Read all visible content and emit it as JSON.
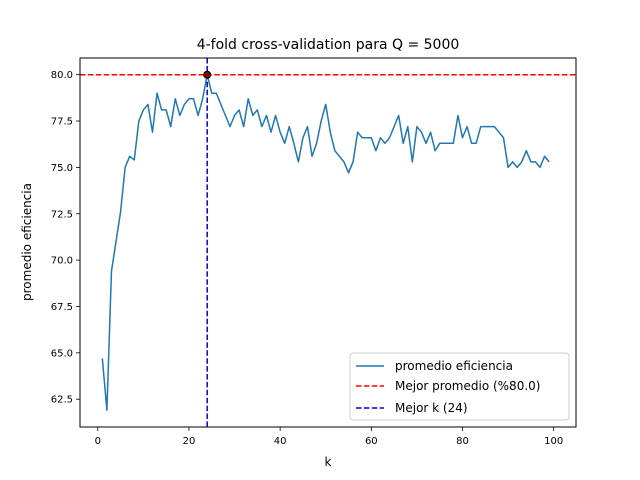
{
  "chart_data": {
    "type": "line",
    "title": "4-fold cross-validation para Q = 5000",
    "xlabel": "k",
    "ylabel": "promedio eficiencia",
    "xlim": [
      -3.9,
      104.9
    ],
    "ylim": [
      61.0,
      80.9
    ],
    "xticks": [
      0,
      20,
      40,
      60,
      80,
      100
    ],
    "xtick_labels": [
      "0",
      "20",
      "40",
      "60",
      "80",
      "100"
    ],
    "yticks": [
      62.5,
      65.0,
      67.5,
      70.0,
      72.5,
      75.0,
      77.5,
      80.0
    ],
    "ytick_labels": [
      "62.5",
      "65.0",
      "67.5",
      "70.0",
      "72.5",
      "75.0",
      "77.5",
      "80.0"
    ],
    "grid": false,
    "legend_position": "lower-right",
    "series": [
      {
        "name": "promedio eficiencia",
        "color": "#1f77b4",
        "x": [
          1,
          2,
          3,
          4,
          5,
          6,
          7,
          8,
          9,
          10,
          11,
          12,
          13,
          14,
          15,
          16,
          17,
          18,
          19,
          20,
          21,
          22,
          23,
          24,
          25,
          26,
          27,
          28,
          29,
          30,
          31,
          32,
          33,
          34,
          35,
          36,
          37,
          38,
          39,
          40,
          41,
          42,
          43,
          44,
          45,
          46,
          47,
          48,
          49,
          50,
          51,
          52,
          53,
          54,
          55,
          56,
          57,
          58,
          59,
          60,
          61,
          62,
          63,
          64,
          65,
          66,
          67,
          68,
          69,
          70,
          71,
          72,
          73,
          74,
          75,
          76,
          77,
          78,
          79,
          80,
          81,
          82,
          83,
          84,
          85,
          86,
          87,
          88,
          89,
          90,
          91,
          92,
          93,
          94,
          95,
          96,
          97,
          98,
          99
        ],
        "values": [
          64.7,
          61.9,
          69.4,
          71.0,
          72.6,
          75.0,
          75.6,
          75.4,
          77.5,
          78.1,
          78.4,
          76.9,
          79.0,
          78.1,
          78.1,
          77.2,
          78.7,
          77.8,
          78.4,
          78.7,
          78.7,
          77.8,
          78.7,
          80.0,
          79.0,
          79.0,
          78.4,
          77.8,
          77.2,
          77.8,
          78.1,
          77.2,
          78.7,
          77.8,
          78.1,
          77.2,
          77.8,
          76.9,
          77.8,
          76.9,
          76.3,
          77.2,
          76.3,
          75.3,
          76.6,
          77.2,
          75.6,
          76.3,
          77.5,
          78.4,
          76.9,
          75.9,
          75.6,
          75.3,
          74.7,
          75.3,
          76.9,
          76.6,
          76.6,
          76.6,
          75.9,
          76.6,
          76.3,
          76.6,
          77.2,
          77.8,
          76.3,
          77.2,
          75.3,
          77.2,
          76.9,
          76.3,
          76.9,
          75.9,
          76.3,
          76.3,
          76.3,
          76.3,
          77.8,
          76.6,
          77.2,
          76.3,
          76.3,
          77.2,
          77.2,
          77.2,
          77.2,
          76.9,
          76.6,
          75.0,
          75.3,
          75.0,
          75.3,
          75.9,
          75.3,
          75.3,
          75.0,
          75.6,
          75.3
        ]
      }
    ],
    "reference_lines": [
      {
        "orientation": "horizontal",
        "value": 80.0,
        "color": "#ff0000",
        "style": "dashed",
        "label": "Mejor promedio (%80.0)"
      },
      {
        "orientation": "vertical",
        "value": 24,
        "color": "#0000cc",
        "style": "dashed",
        "label": "Mejor k (24)"
      }
    ],
    "highlight_point": {
      "x": 24,
      "y": 80.0,
      "color": "#8b0000"
    }
  }
}
